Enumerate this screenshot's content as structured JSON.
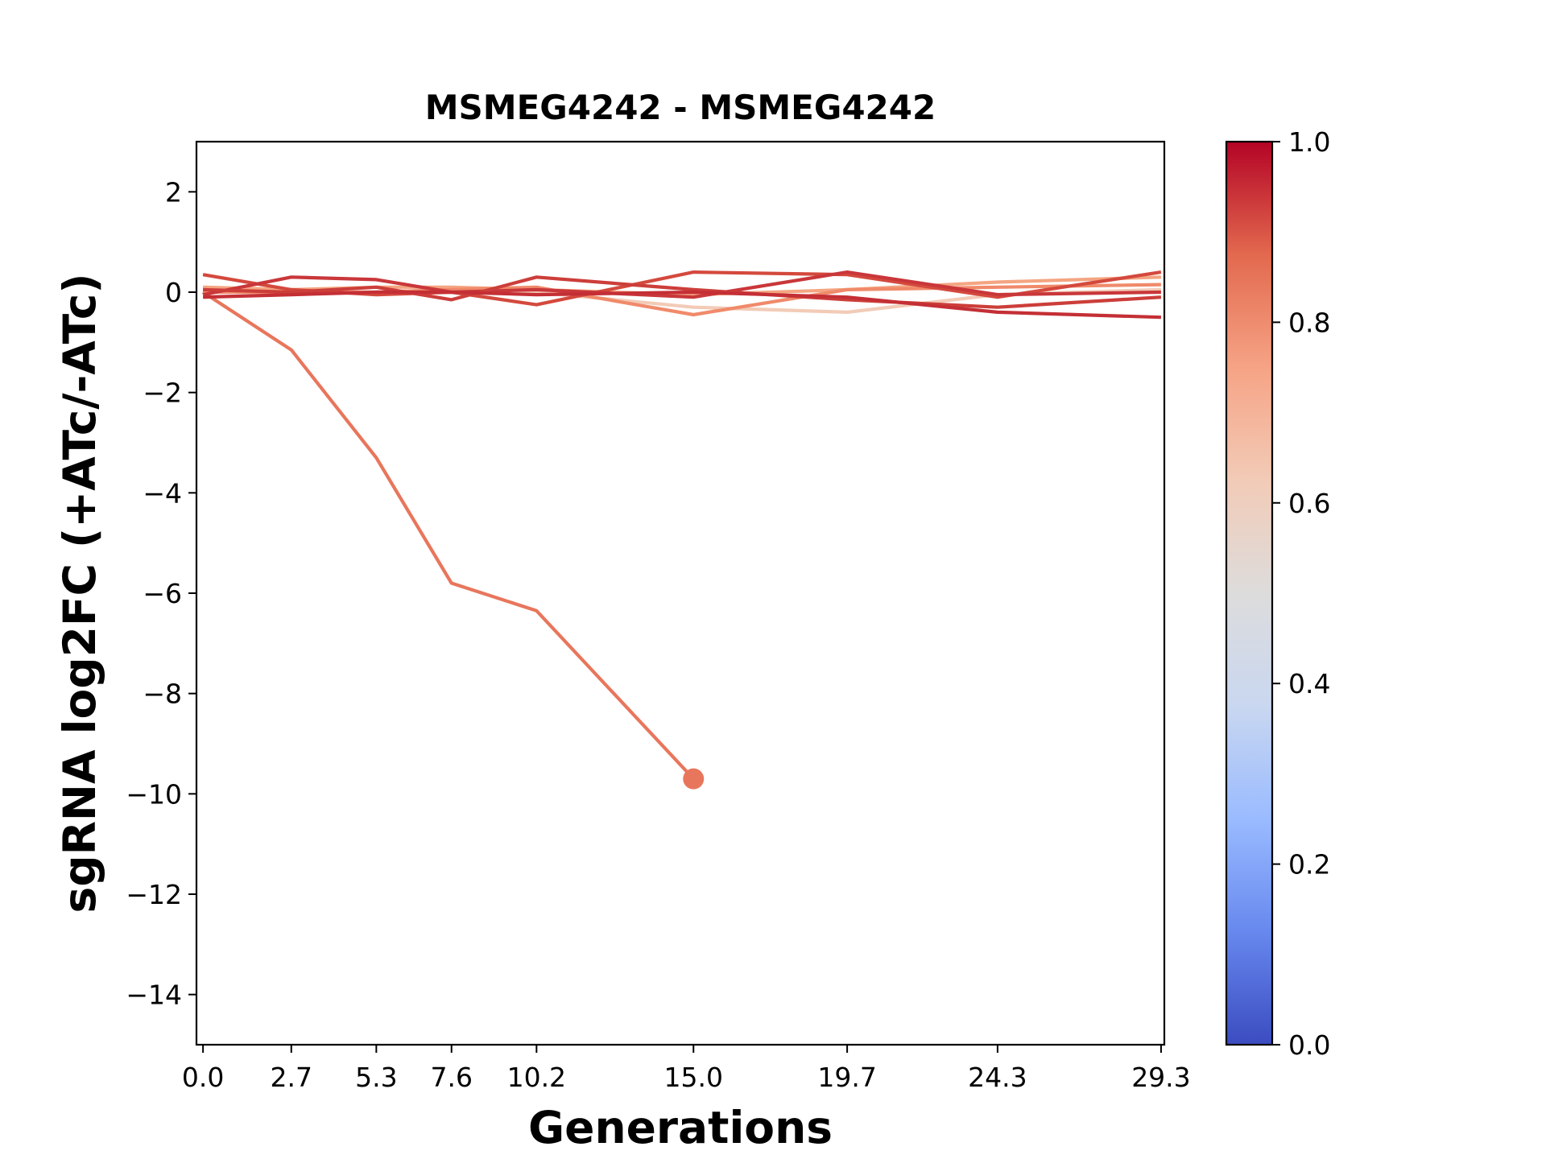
{
  "chart_data": {
    "type": "line",
    "title": "MSMEG4242 - MSMEG4242",
    "xlabel": "Generations",
    "ylabel": "sgRNA log2FC (+ATc/-ATc)",
    "x": [
      0.0,
      2.7,
      5.3,
      7.6,
      10.2,
      15.0,
      19.7,
      24.3,
      29.3
    ],
    "x_tick_labels": [
      "0.0",
      "2.7",
      "5.3",
      "7.6",
      "10.2",
      "15.0",
      "19.7",
      "24.3",
      "29.3"
    ],
    "xlim": [
      -0.2,
      29.4
    ],
    "ylim": [
      -15,
      3
    ],
    "y_ticks": [
      2,
      0,
      -2,
      -4,
      -6,
      -8,
      -10,
      -12,
      -14
    ],
    "y_tick_labels": [
      "2",
      "0",
      "−2",
      "−4",
      "−6",
      "−8",
      "−10",
      "−12",
      "−14"
    ],
    "grid": false,
    "colormap": "coolwarm",
    "colorbar": {
      "range": [
        0.0,
        1.0
      ],
      "tick_labels": [
        "0.0",
        "0.2",
        "0.4",
        "0.6",
        "0.8",
        "1.0"
      ],
      "ticks": [
        0.0,
        0.2,
        0.4,
        0.6,
        0.8,
        1.0
      ],
      "stops": [
        "#3b4cc0",
        "#6788ee",
        "#9abbff",
        "#c9d7f0",
        "#dddcdc",
        "#f2cbb7",
        "#f6a385",
        "#e2694e",
        "#b40426"
      ]
    },
    "series": [
      {
        "color": "#e8765c",
        "end_marker": true,
        "values": [
          0.0,
          -1.15,
          -3.3,
          -5.8,
          -6.35,
          -9.7,
          null,
          null,
          null
        ]
      },
      {
        "color": "#f2cbb7",
        "end_marker": false,
        "values": [
          0.05,
          0.0,
          0.0,
          0.05,
          0.0,
          -0.3,
          -0.4,
          -0.05,
          0.05
        ]
      },
      {
        "color": "#f4a582",
        "end_marker": false,
        "values": [
          0.1,
          0.05,
          0.1,
          0.1,
          0.05,
          -0.05,
          0.05,
          0.2,
          0.3
        ]
      },
      {
        "color": "#f08a6a",
        "end_marker": false,
        "values": [
          0.0,
          0.0,
          0.0,
          0.05,
          0.1,
          -0.45,
          0.05,
          0.1,
          0.15
        ]
      },
      {
        "color": "#d4493d",
        "end_marker": false,
        "values": [
          0.35,
          0.05,
          -0.05,
          0.0,
          -0.25,
          0.4,
          0.35,
          -0.1,
          0.4
        ]
      },
      {
        "color": "#c9373a",
        "end_marker": false,
        "values": [
          -0.05,
          0.3,
          0.25,
          0.0,
          0.05,
          -0.1,
          0.4,
          -0.05,
          0.0
        ]
      },
      {
        "color": "#cc3e3a",
        "end_marker": false,
        "values": [
          0.05,
          0.0,
          0.1,
          -0.15,
          0.3,
          0.05,
          -0.15,
          -0.3,
          -0.1
        ]
      },
      {
        "color": "#c42f35",
        "end_marker": false,
        "values": [
          -0.1,
          -0.05,
          0.0,
          0.0,
          -0.05,
          0.0,
          -0.1,
          -0.4,
          -0.5
        ]
      }
    ]
  }
}
